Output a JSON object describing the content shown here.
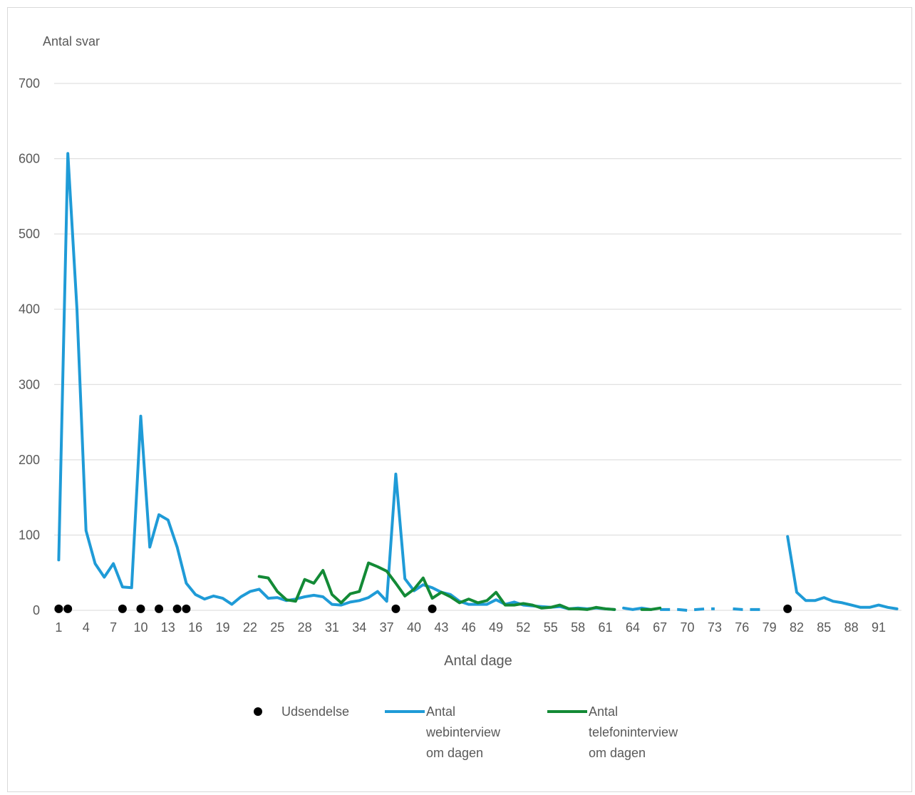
{
  "chart_data": {
    "type": "line",
    "ylabel": "Antal svar",
    "xlabel": "Antal dage",
    "ylim": [
      0,
      700
    ],
    "yticks": [
      0,
      100,
      200,
      300,
      400,
      500,
      600,
      700
    ],
    "xlim": [
      1,
      93
    ],
    "xtick_labels": [
      "1",
      "4",
      "7",
      "10",
      "13",
      "16",
      "19",
      "22",
      "25",
      "28",
      "31",
      "34",
      "37",
      "40",
      "43",
      "46",
      "49",
      "52",
      "55",
      "58",
      "61",
      "64",
      "67",
      "70",
      "73",
      "76",
      "79",
      "82",
      "85",
      "88",
      "91"
    ],
    "grid": "horizontal",
    "legend_position": "bottom",
    "series": [
      {
        "name": "Udsendelse",
        "kind": "markers",
        "color": "#000000",
        "points": [
          [
            1,
            2
          ],
          [
            2,
            2
          ],
          [
            8,
            2
          ],
          [
            10,
            2
          ],
          [
            12,
            2
          ],
          [
            14,
            2
          ],
          [
            15,
            2
          ],
          [
            38,
            2
          ],
          [
            42,
            2
          ],
          [
            81,
            2
          ]
        ]
      },
      {
        "name": "Antal webinterview om dagen",
        "kind": "line",
        "color": "#1F9BD7",
        "segments": [
          {
            "dashed": false,
            "points": [
              [
                1,
                67
              ],
              [
                2,
                607
              ],
              [
                3,
                400
              ],
              [
                4,
                106
              ],
              [
                5,
                62
              ],
              [
                6,
                44
              ],
              [
                7,
                62
              ],
              [
                8,
                31
              ],
              [
                9,
                30
              ],
              [
                10,
                258
              ],
              [
                11,
                84
              ],
              [
                12,
                127
              ],
              [
                13,
                120
              ],
              [
                14,
                84
              ],
              [
                15,
                36
              ],
              [
                16,
                21
              ],
              [
                17,
                15
              ],
              [
                18,
                19
              ],
              [
                19,
                16
              ],
              [
                20,
                8
              ],
              [
                21,
                18
              ],
              [
                22,
                25
              ],
              [
                23,
                28
              ],
              [
                24,
                16
              ],
              [
                25,
                17
              ],
              [
                26,
                13
              ],
              [
                27,
                15
              ],
              [
                28,
                18
              ],
              [
                29,
                20
              ],
              [
                30,
                18
              ],
              [
                31,
                8
              ],
              [
                32,
                7
              ],
              [
                33,
                11
              ],
              [
                34,
                13
              ],
              [
                35,
                17
              ],
              [
                36,
                25
              ],
              [
                37,
                12
              ],
              [
                38,
                181
              ],
              [
                39,
                42
              ],
              [
                40,
                26
              ],
              [
                41,
                34
              ],
              [
                42,
                30
              ],
              [
                43,
                24
              ],
              [
                44,
                21
              ],
              [
                45,
                12
              ],
              [
                46,
                8
              ],
              [
                47,
                8
              ],
              [
                48,
                8
              ],
              [
                49,
                14
              ],
              [
                50,
                8
              ],
              [
                51,
                11
              ],
              [
                52,
                7
              ],
              [
                53,
                6
              ],
              [
                54,
                5
              ],
              [
                55,
                4
              ],
              [
                56,
                5
              ],
              [
                57,
                2
              ],
              [
                58,
                3
              ],
              [
                59,
                2
              ],
              [
                60,
                3
              ],
              [
                61,
                2
              ],
              [
                62,
                1
              ]
            ]
          },
          {
            "dashed": false,
            "points": [
              [
                63,
                3
              ],
              [
                64,
                1
              ],
              [
                65,
                3
              ],
              [
                66,
                1
              ]
            ]
          },
          {
            "dashed": true,
            "points": [
              [
                67,
                1
              ],
              [
                68,
                1
              ],
              [
                69,
                1
              ],
              [
                70,
                0
              ],
              [
                71,
                1
              ],
              [
                72,
                2
              ],
              [
                73,
                2
              ]
            ]
          },
          {
            "dashed": true,
            "points": [
              [
                75,
                2
              ],
              [
                76,
                1
              ],
              [
                77,
                1
              ],
              [
                78,
                1
              ]
            ]
          },
          {
            "dashed": false,
            "points": [
              [
                81,
                98
              ],
              [
                82,
                24
              ],
              [
                83,
                13
              ],
              [
                84,
                13
              ],
              [
                85,
                17
              ],
              [
                86,
                12
              ],
              [
                87,
                10
              ],
              [
                88,
                7
              ],
              [
                89,
                4
              ],
              [
                90,
                4
              ],
              [
                91,
                7
              ],
              [
                92,
                4
              ],
              [
                93,
                2
              ]
            ]
          }
        ]
      },
      {
        "name": "Antal telefoninterview om dagen",
        "kind": "line",
        "color": "#138A36",
        "segments": [
          {
            "dashed": false,
            "points": [
              [
                23,
                45
              ],
              [
                24,
                43
              ],
              [
                25,
                25
              ],
              [
                26,
                14
              ],
              [
                27,
                12
              ],
              [
                28,
                41
              ],
              [
                29,
                36
              ],
              [
                30,
                53
              ],
              [
                31,
                21
              ],
              [
                32,
                10
              ],
              [
                33,
                22
              ],
              [
                34,
                25
              ],
              [
                35,
                63
              ],
              [
                36,
                58
              ],
              [
                37,
                52
              ],
              [
                38,
                36
              ],
              [
                39,
                19
              ],
              [
                40,
                28
              ],
              [
                41,
                43
              ],
              [
                42,
                16
              ],
              [
                43,
                24
              ],
              [
                44,
                18
              ],
              [
                45,
                10
              ],
              [
                46,
                15
              ],
              [
                47,
                10
              ],
              [
                48,
                13
              ],
              [
                49,
                24
              ],
              [
                50,
                7
              ],
              [
                51,
                7
              ],
              [
                52,
                9
              ],
              [
                53,
                7
              ],
              [
                54,
                3
              ],
              [
                55,
                4
              ],
              [
                56,
                7
              ],
              [
                57,
                2
              ],
              [
                58,
                2
              ],
              [
                59,
                1
              ],
              [
                60,
                4
              ],
              [
                61,
                2
              ],
              [
                62,
                1
              ]
            ]
          },
          {
            "dashed": false,
            "points": [
              [
                65,
                1
              ],
              [
                66,
                1
              ],
              [
                67,
                3
              ]
            ]
          }
        ]
      }
    ],
    "legend": {
      "items": [
        {
          "marker": "dot",
          "lines": [
            "Udsendelse"
          ]
        },
        {
          "marker": "line",
          "lines": [
            "Antal",
            "webinterview",
            "om dagen"
          ]
        },
        {
          "marker": "line",
          "lines": [
            "Antal",
            "telefoninterview",
            "om dagen"
          ]
        }
      ]
    }
  }
}
